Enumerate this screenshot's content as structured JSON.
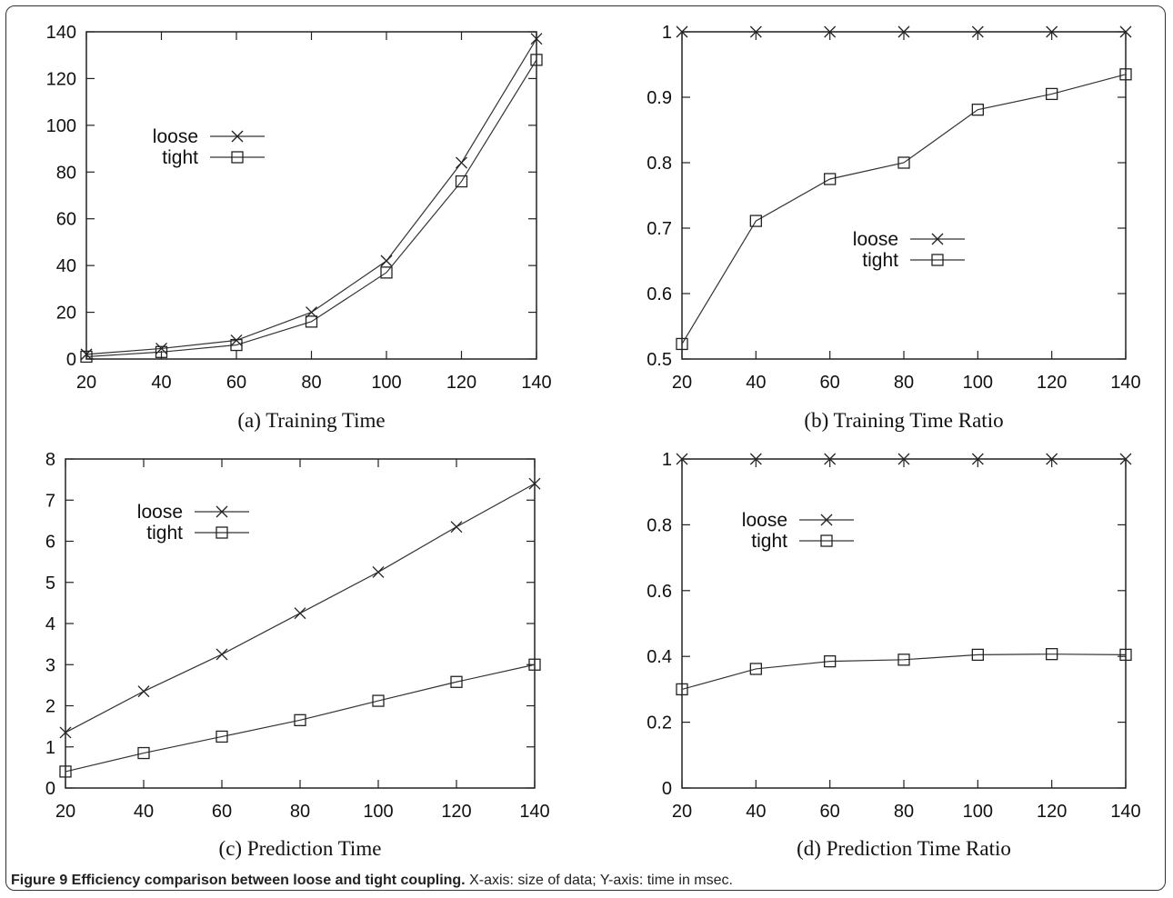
{
  "figure_caption": {
    "title": "Figure 9 Efficiency comparison between loose and tight coupling.",
    "text": " X-axis: size of data; Y-axis: time in msec."
  },
  "chart_data": [
    {
      "type": "line",
      "title": "(a) Training Time",
      "x": [
        20,
        40,
        60,
        80,
        100,
        120,
        140
      ],
      "xlim": [
        20,
        140
      ],
      "ylim": [
        0,
        140
      ],
      "xticks": [
        20,
        40,
        60,
        80,
        100,
        120,
        140
      ],
      "yticks": [
        0,
        20,
        40,
        60,
        80,
        100,
        120,
        140
      ],
      "legend_position": "upper-left",
      "series": [
        {
          "name": "loose",
          "marker": "x",
          "values": [
            2,
            4.5,
            8,
            20,
            42,
            84,
            137
          ]
        },
        {
          "name": "tight",
          "marker": "square",
          "values": [
            1,
            3,
            6,
            16,
            37,
            76,
            128
          ]
        }
      ]
    },
    {
      "type": "line",
      "title": "(b) Training Time Ratio",
      "x": [
        20,
        40,
        60,
        80,
        100,
        120,
        140
      ],
      "xlim": [
        20,
        140
      ],
      "ylim": [
        0.5,
        1
      ],
      "xticks": [
        20,
        40,
        60,
        80,
        100,
        120,
        140
      ],
      "yticks": [
        0.5,
        0.6,
        0.7,
        0.8,
        0.9,
        1
      ],
      "legend_position": "center-right",
      "series": [
        {
          "name": "loose",
          "marker": "x",
          "values": [
            1,
            1,
            1,
            1,
            1,
            1,
            1
          ]
        },
        {
          "name": "tight",
          "marker": "square",
          "values": [
            0.523,
            0.711,
            0.775,
            0.8,
            0.881,
            0.905,
            0.935
          ]
        }
      ]
    },
    {
      "type": "line",
      "title": "(c) Prediction Time",
      "x": [
        20,
        40,
        60,
        80,
        100,
        120,
        140
      ],
      "xlim": [
        20,
        140
      ],
      "ylim": [
        0,
        8
      ],
      "xticks": [
        20,
        40,
        60,
        80,
        100,
        120,
        140
      ],
      "yticks": [
        0,
        1,
        2,
        3,
        4,
        5,
        6,
        7,
        8
      ],
      "legend_position": "upper-left",
      "series": [
        {
          "name": "loose",
          "marker": "x",
          "values": [
            1.35,
            2.35,
            3.25,
            4.25,
            5.25,
            6.35,
            7.4
          ]
        },
        {
          "name": "tight",
          "marker": "square",
          "values": [
            0.4,
            0.85,
            1.25,
            1.65,
            2.12,
            2.58,
            3.0
          ]
        }
      ]
    },
    {
      "type": "line",
      "title": "(d) Prediction Time Ratio",
      "x": [
        20,
        40,
        60,
        80,
        100,
        120,
        140
      ],
      "xlim": [
        20,
        140
      ],
      "ylim": [
        0,
        1
      ],
      "xticks": [
        20,
        40,
        60,
        80,
        100,
        120,
        140
      ],
      "yticks": [
        0,
        0.2,
        0.4,
        0.6,
        0.8,
        1
      ],
      "legend_position": "upper-left",
      "series": [
        {
          "name": "loose",
          "marker": "x",
          "values": [
            1,
            1,
            1,
            1,
            1,
            1,
            1
          ]
        },
        {
          "name": "tight",
          "marker": "square",
          "values": [
            0.3,
            0.362,
            0.385,
            0.39,
            0.405,
            0.407,
            0.405
          ]
        }
      ]
    }
  ]
}
